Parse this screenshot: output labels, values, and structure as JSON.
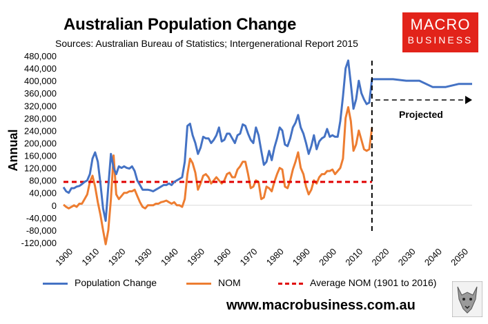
{
  "header": {
    "title": "Australian Population Change",
    "subtitle": "Sources: Australian Bureau of Statistics; Intergenerational Report 2015"
  },
  "logo": {
    "line1": "MACRO",
    "line2": "BUSINESS"
  },
  "footer": {
    "website": "www.macrobusiness.com.au"
  },
  "colors": {
    "population": "#4472c4",
    "nom": "#ed7d31",
    "average": "#e00000",
    "logo_bg": "#e2231a"
  },
  "chart_data": {
    "type": "line",
    "ylabel": "Annual",
    "xlabel": "",
    "ylim": [
      -120000,
      480000
    ],
    "yticks": [
      -120000,
      -80000,
      -40000,
      0,
      40000,
      80000,
      120000,
      160000,
      200000,
      240000,
      280000,
      320000,
      360000,
      400000,
      440000,
      480000
    ],
    "ytick_labels": [
      "-120,000",
      "-80,000",
      "-40,000",
      "0",
      "40,000",
      "80,000",
      "120,000",
      "160,000",
      "200,000",
      "240,000",
      "280,000",
      "320,000",
      "360,000",
      "400,000",
      "440,000",
      "480,000"
    ],
    "xlim": [
      1900,
      2055
    ],
    "xticks": [
      1900,
      1910,
      1920,
      1930,
      1940,
      1950,
      1960,
      1970,
      1980,
      1990,
      2000,
      2010,
      2020,
      2030,
      2040,
      2050
    ],
    "divider_year": 2017,
    "annotation": "Projected",
    "series": [
      {
        "name": "Population Change",
        "x": [
          1900,
          1901,
          1902,
          1903,
          1904,
          1905,
          1906,
          1907,
          1908,
          1909,
          1910,
          1911,
          1912,
          1913,
          1914,
          1915,
          1916,
          1917,
          1918,
          1919,
          1920,
          1921,
          1922,
          1923,
          1924,
          1925,
          1926,
          1927,
          1928,
          1929,
          1930,
          1931,
          1932,
          1933,
          1934,
          1935,
          1936,
          1937,
          1938,
          1939,
          1940,
          1941,
          1942,
          1943,
          1944,
          1945,
          1946,
          1947,
          1948,
          1949,
          1950,
          1951,
          1952,
          1953,
          1954,
          1955,
          1956,
          1957,
          1958,
          1959,
          1960,
          1961,
          1962,
          1963,
          1964,
          1965,
          1966,
          1967,
          1968,
          1969,
          1970,
          1971,
          1972,
          1973,
          1974,
          1975,
          1976,
          1977,
          1978,
          1979,
          1980,
          1981,
          1982,
          1983,
          1984,
          1985,
          1986,
          1987,
          1988,
          1989,
          1990,
          1991,
          1992,
          1993,
          1994,
          1995,
          1996,
          1997,
          1998,
          1999,
          2000,
          2001,
          2002,
          2003,
          2004,
          2005,
          2006,
          2007,
          2008,
          2009,
          2010,
          2011,
          2012,
          2013,
          2014,
          2015,
          2016,
          2017,
          2020,
          2025,
          2030,
          2035,
          2040,
          2045,
          2050,
          2055
        ],
        "values": [
          58000,
          45000,
          40000,
          55000,
          55000,
          60000,
          62000,
          68000,
          75000,
          80000,
          100000,
          150000,
          170000,
          140000,
          70000,
          -10000,
          -50000,
          60000,
          165000,
          120000,
          100000,
          125000,
          120000,
          125000,
          120000,
          118000,
          125000,
          110000,
          80000,
          65000,
          50000,
          50000,
          50000,
          48000,
          45000,
          50000,
          55000,
          60000,
          65000,
          65000,
          70000,
          65000,
          75000,
          80000,
          85000,
          90000,
          140000,
          255000,
          262000,
          225000,
          200000,
          165000,
          185000,
          220000,
          215000,
          215000,
          200000,
          210000,
          225000,
          250000,
          205000,
          210000,
          230000,
          230000,
          215000,
          200000,
          225000,
          230000,
          260000,
          255000,
          230000,
          210000,
          200000,
          250000,
          225000,
          175000,
          130000,
          140000,
          175000,
          145000,
          185000,
          215000,
          250000,
          240000,
          195000,
          190000,
          215000,
          250000,
          265000,
          290000,
          250000,
          230000,
          200000,
          165000,
          190000,
          225000,
          180000,
          205000,
          215000,
          220000,
          245000,
          220000,
          225000,
          220000,
          220000,
          270000,
          350000,
          440000,
          465000,
          390000,
          310000,
          340000,
          400000,
          360000,
          340000,
          325000,
          330000,
          405000,
          405000,
          405000,
          400000,
          400000,
          380000,
          380000,
          390000,
          390000
        ]
      },
      {
        "name": "NOM",
        "x": [
          1900,
          1901,
          1902,
          1903,
          1904,
          1905,
          1906,
          1907,
          1908,
          1909,
          1910,
          1911,
          1912,
          1913,
          1914,
          1915,
          1916,
          1917,
          1918,
          1919,
          1920,
          1921,
          1922,
          1923,
          1924,
          1925,
          1926,
          1927,
          1928,
          1929,
          1930,
          1931,
          1932,
          1933,
          1934,
          1935,
          1936,
          1937,
          1938,
          1939,
          1940,
          1941,
          1942,
          1943,
          1944,
          1945,
          1946,
          1947,
          1948,
          1949,
          1950,
          1951,
          1952,
          1953,
          1954,
          1955,
          1956,
          1957,
          1958,
          1959,
          1960,
          1961,
          1962,
          1963,
          1964,
          1965,
          1966,
          1967,
          1968,
          1969,
          1970,
          1971,
          1972,
          1973,
          1974,
          1975,
          1976,
          1977,
          1978,
          1979,
          1980,
          1981,
          1982,
          1983,
          1984,
          1985,
          1986,
          1987,
          1988,
          1989,
          1990,
          1991,
          1992,
          1993,
          1994,
          1995,
          1996,
          1997,
          1998,
          1999,
          2000,
          2001,
          2002,
          2003,
          2004,
          2005,
          2006,
          2007,
          2008,
          2009,
          2010,
          2011,
          2012,
          2013,
          2014,
          2015,
          2016,
          2017
        ],
        "values": [
          2000,
          -5000,
          -10000,
          -5000,
          0,
          -5000,
          5000,
          5000,
          20000,
          35000,
          75000,
          95000,
          60000,
          10000,
          -30000,
          -80000,
          -125000,
          -80000,
          20000,
          160000,
          35000,
          20000,
          30000,
          40000,
          40000,
          45000,
          45000,
          50000,
          30000,
          10000,
          -5000,
          -10000,
          0,
          0,
          0,
          5000,
          5000,
          10000,
          12000,
          15000,
          10000,
          5000,
          10000,
          0,
          0,
          -5000,
          20000,
          100000,
          150000,
          135000,
          105000,
          50000,
          70000,
          95000,
          100000,
          90000,
          70000,
          80000,
          90000,
          80000,
          70000,
          80000,
          100000,
          105000,
          90000,
          90000,
          115000,
          125000,
          140000,
          140000,
          100000,
          55000,
          60000,
          80000,
          75000,
          20000,
          25000,
          60000,
          55000,
          45000,
          75000,
          100000,
          120000,
          115000,
          60000,
          55000,
          80000,
          115000,
          140000,
          170000,
          120000,
          100000,
          60000,
          35000,
          50000,
          80000,
          70000,
          90000,
          100000,
          100000,
          110000,
          110000,
          115000,
          100000,
          110000,
          120000,
          150000,
          280000,
          315000,
          270000,
          175000,
          195000,
          240000,
          210000,
          180000,
          175000,
          180000,
          250000
        ]
      },
      {
        "name": "Average NOM (1901 to 2016)",
        "x": [
          1900,
          2017
        ],
        "values": [
          75000,
          75000
        ]
      }
    ]
  }
}
